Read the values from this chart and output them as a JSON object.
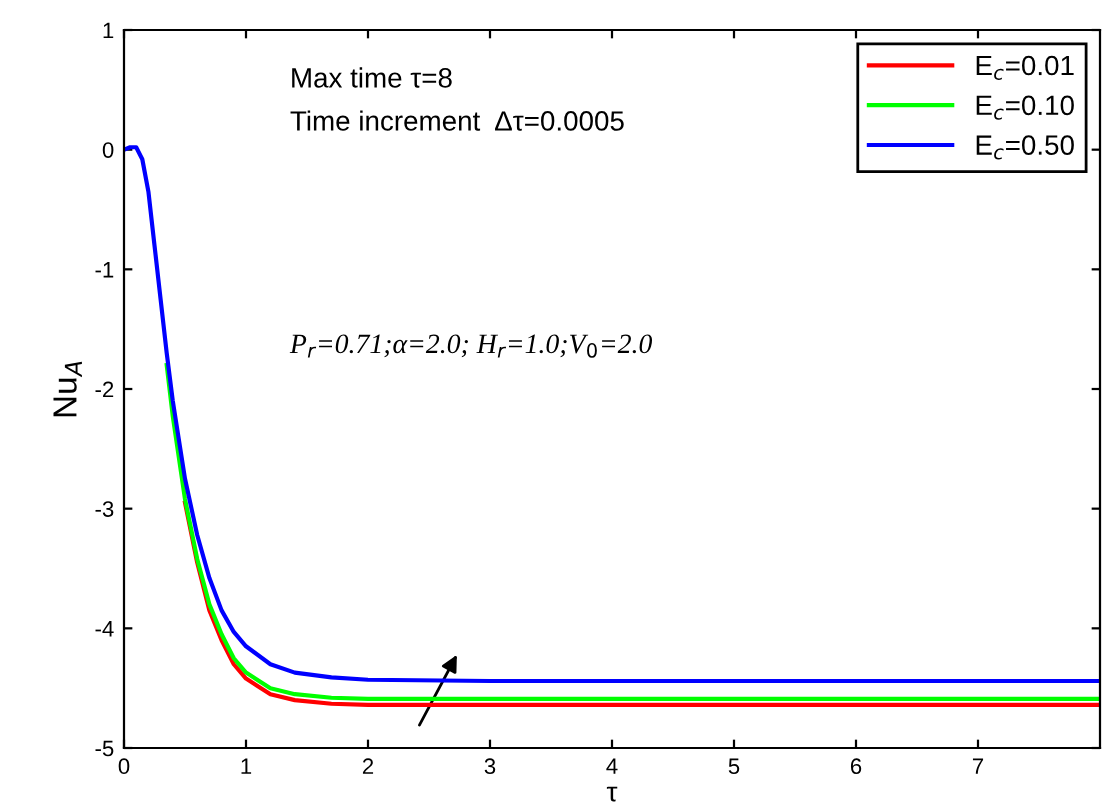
{
  "chart_data": {
    "type": "line",
    "xlabel": "τ",
    "ylabel": "Nu$_{A}$",
    "xlim": [
      0,
      8
    ],
    "ylim": [
      -5,
      1
    ],
    "xticks": [
      0,
      1,
      2,
      3,
      4,
      5,
      6,
      7
    ],
    "yticks": [
      -5,
      -4,
      -3,
      -2,
      -1,
      0,
      1
    ],
    "legend": "top right",
    "grid": false,
    "annotations": [
      "Max time τ=8",
      "Time increment  Δτ=0.0005",
      "P$_{r}$=0.71;α=2.0; H$_{r}$=1.0;V$_{0}$=2.0"
    ],
    "x": [
      0,
      0.05,
      0.1,
      0.15,
      0.2,
      0.25,
      0.3,
      0.35,
      0.4,
      0.5,
      0.6,
      0.7,
      0.8,
      0.9,
      1.0,
      1.2,
      1.4,
      1.7,
      2.0,
      3.0,
      5.0,
      8.0
    ],
    "series": [
      {
        "name": "E$_{c}$=0.01",
        "color": "#ff0000",
        "values": [
          null,
          null,
          null,
          null,
          null,
          null,
          null,
          null,
          null,
          -2.95,
          -3.45,
          -3.85,
          -4.1,
          -4.3,
          -4.42,
          -4.55,
          -4.6,
          -4.63,
          -4.64,
          -4.64,
          -4.64,
          -4.64
        ]
      },
      {
        "name": "E$_{c}$=0.10",
        "color": "#00ff00",
        "values": [
          null,
          null,
          null,
          null,
          null,
          null,
          null,
          -1.8,
          -2.23,
          -2.92,
          -3.42,
          -3.8,
          -4.05,
          -4.25,
          -4.37,
          -4.5,
          -4.55,
          -4.58,
          -4.59,
          -4.59,
          -4.59,
          -4.59
        ]
      },
      {
        "name": "E$_{c}$=0.50",
        "color": "#0000ff",
        "values": [
          0,
          0.02,
          0.02,
          -0.08,
          -0.35,
          -0.8,
          -1.25,
          -1.7,
          -2.1,
          -2.75,
          -3.22,
          -3.58,
          -3.85,
          -4.03,
          -4.15,
          -4.3,
          -4.37,
          -4.41,
          -4.43,
          -4.44,
          -4.44,
          -4.44
        ]
      }
    ]
  }
}
